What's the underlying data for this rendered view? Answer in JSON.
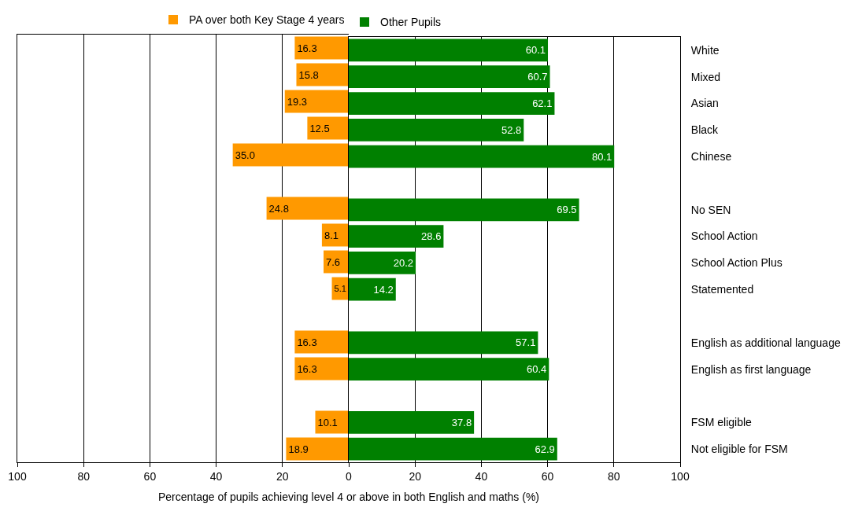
{
  "chart_data": [
    {
      "type": "bar",
      "orientation": "horizontal",
      "xlabel": "Percentage of pupils achieving level 4 or above in both English and maths (%)",
      "categories": [
        null,
        null,
        null,
        null,
        null,
        null,
        null,
        null,
        null,
        null,
        null,
        null,
        null,
        null,
        null,
        null
      ],
      "series": [
        {
          "name": "PA over both Key Stage 4 years",
          "color": "#ff9900",
          "values": [
            16.3,
            15.8,
            19.3,
            12.5,
            35.0,
            null,
            24.8,
            8.1,
            7.6,
            5.1,
            null,
            16.3,
            16.3,
            null,
            10.1,
            18.9
          ],
          "value_labels": [
            "16.3",
            "15.8",
            "19.3",
            "12.5",
            "35.0",
            null,
            "24.8",
            "8.1",
            "7.6",
            "5.1",
            null,
            "16.3",
            "16.3",
            null,
            "10.1",
            "18.9"
          ]
        }
      ],
      "xlim": [
        100,
        0
      ],
      "xticks": [
        100,
        80,
        60,
        40,
        20,
        {
          "value": 0,
          "label": null
        }
      ],
      "grid": "x",
      "legend": "top right",
      "tick_labels": "x"
    },
    {
      "type": "bar",
      "orientation": "horizontal",
      "categories": [
        "White",
        "Mixed",
        "Asian",
        "Black",
        "Chinese",
        null,
        "No SEN",
        "School Action",
        "School Action Plus",
        "Statemented",
        null,
        "English as additional language",
        "English as first language",
        null,
        "FSM eligible",
        "Not eligible for FSM"
      ],
      "series": [
        {
          "name": "Other Pupils",
          "color": "#008000",
          "values": [
            60.1,
            60.7,
            62.1,
            52.8,
            80.1,
            null,
            69.5,
            28.6,
            20.2,
            14.2,
            null,
            57.1,
            60.4,
            null,
            37.8,
            62.9
          ],
          "value_labels": [
            "60.1",
            "60.7",
            "62.1",
            "52.8",
            "80.1",
            null,
            "69.5",
            "28.6",
            "20.2",
            "14.2",
            null,
            "57.1",
            "60.4",
            null,
            "37.8",
            "62.9"
          ]
        }
      ],
      "xlim": [
        0,
        100
      ],
      "xticks": [
        0,
        20,
        40,
        60,
        80,
        100
      ],
      "grid": "x",
      "legend": "top left"
    }
  ]
}
